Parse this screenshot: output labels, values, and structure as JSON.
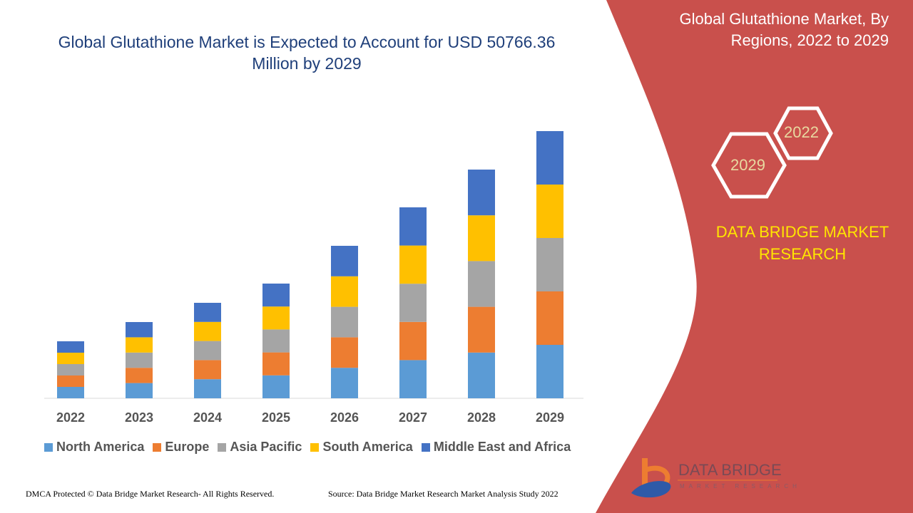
{
  "title": "Global Glutathione Market is Expected to Account for USD 50766.36 Million by 2029",
  "side_panel": {
    "title": "Global Glutathione Market, By Regions, 2022 to 2029",
    "hex_years": [
      "2022",
      "2029"
    ],
    "brand": "DATA BRIDGE MARKET RESEARCH",
    "logo_text": "DATA BRIDGE",
    "logo_subtext": "MARKET RESEARCH",
    "panel_color": "#c9504c",
    "brand_color": "#ffe600"
  },
  "footer": {
    "left": "DMCA Protected © Data Bridge Market Research- All Rights Reserved.",
    "right": "Source: Data Bridge Market Research Market Analysis Study 2022"
  },
  "chart_data": {
    "type": "bar",
    "stacked": true,
    "grid": false,
    "y_axis_shown": false,
    "legend_position": "bottom",
    "categories": [
      "2022",
      "2023",
      "2024",
      "2025",
      "2026",
      "2027",
      "2028",
      "2029"
    ],
    "series": [
      {
        "name": "North America",
        "color": "#5b9bd5",
        "values": [
          2166,
          2897,
          3628,
          4359,
          5794,
          7256,
          8691,
          10153
        ]
      },
      {
        "name": "Europe",
        "color": "#ed7d31",
        "values": [
          2166,
          2897,
          3628,
          4359,
          5794,
          7256,
          8691,
          10153
        ]
      },
      {
        "name": "Asia Pacific",
        "color": "#a5a5a5",
        "values": [
          2166,
          2897,
          3628,
          4359,
          5794,
          7256,
          8691,
          10153
        ]
      },
      {
        "name": "South America",
        "color": "#ffc000",
        "values": [
          2166,
          2897,
          3628,
          4359,
          5794,
          7256,
          8691,
          10153
        ]
      },
      {
        "name": "Middle East and Africa",
        "color": "#4472c4",
        "values": [
          2166,
          2897,
          3628,
          4359,
          5794,
          7256,
          8691,
          10153
        ]
      }
    ]
  }
}
